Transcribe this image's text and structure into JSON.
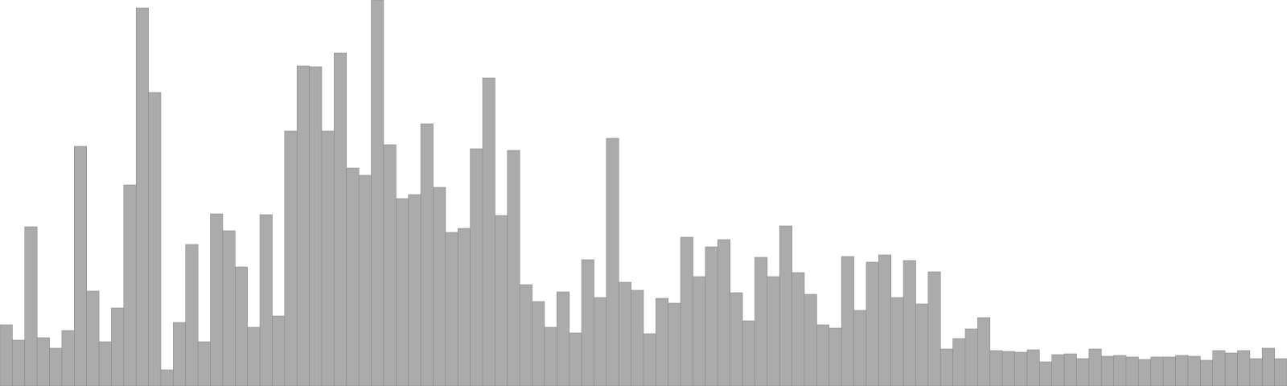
{
  "chart_data": {
    "type": "bar",
    "title": "",
    "xlabel": "",
    "ylabel": "",
    "ylim": [
      0,
      480
    ],
    "grid": false,
    "legend": "none",
    "bar_color": "#ababab",
    "bar_edge_color": "#8a8a8a",
    "background_color": "#ffffff",
    "values": [
      76,
      57,
      198,
      60,
      47,
      69,
      298,
      118,
      55,
      97,
      250,
      470,
      365,
      20,
      79,
      176,
      55,
      214,
      193,
      148,
      73,
      213,
      87,
      317,
      398,
      397,
      317,
      414,
      271,
      262,
      480,
      300,
      233,
      238,
      326,
      247,
      191,
      196,
      295,
      383,
      212,
      293,
      126,
      105,
      73,
      117,
      66,
      157,
      110,
      308,
      129,
      119,
      65,
      109,
      103,
      185,
      136,
      173,
      182,
      116,
      81,
      160,
      136,
      199,
      141,
      114,
      76,
      72,
      161,
      94,
      154,
      163,
      110,
      156,
      102,
      142,
      46,
      59,
      71,
      85,
      44,
      43,
      42,
      45,
      30,
      39,
      40,
      34,
      46,
      37,
      38,
      36,
      33,
      36,
      36,
      38,
      37,
      32,
      44,
      41,
      44,
      34,
      47,
      34
    ]
  }
}
